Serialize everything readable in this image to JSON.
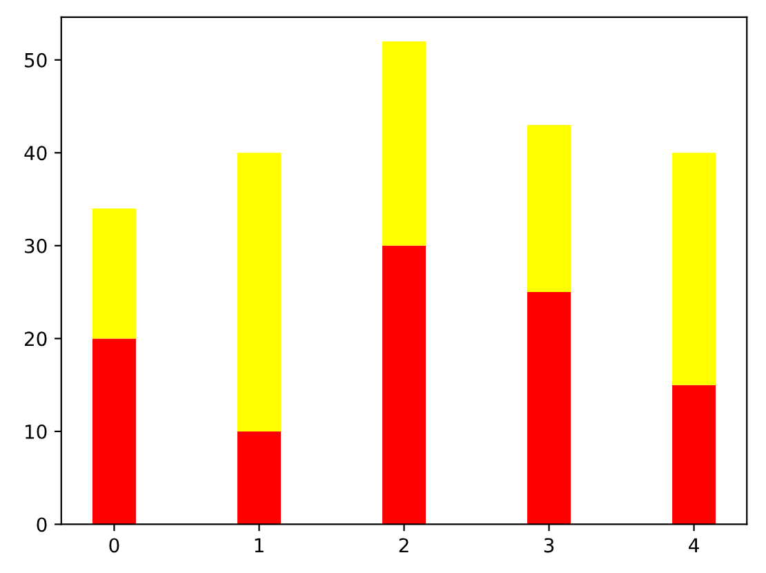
{
  "chart_data": {
    "type": "bar",
    "stacked": true,
    "categories": [
      "0",
      "1",
      "2",
      "3",
      "4"
    ],
    "series": [
      {
        "color": "#ff0000",
        "values": [
          20,
          10,
          30,
          25,
          15
        ]
      },
      {
        "color": "#ffff00",
        "values": [
          14,
          30,
          22,
          18,
          25
        ]
      }
    ],
    "ylim": [
      0,
      54.6
    ],
    "yticks": [
      0,
      10,
      20,
      30,
      40,
      50
    ],
    "grid": false,
    "legend": false
  }
}
